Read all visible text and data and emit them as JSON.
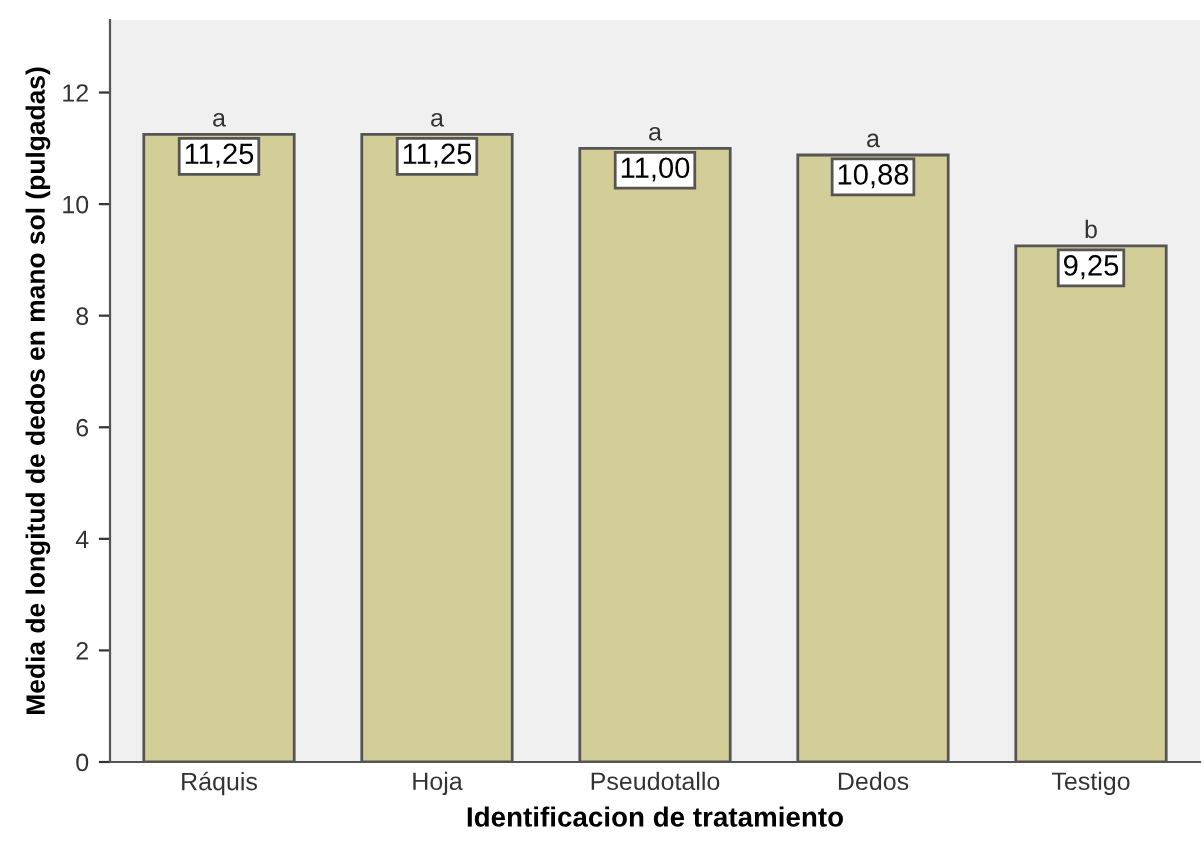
{
  "chart_data": {
    "type": "bar",
    "xlabel": "Identificacion de tratamiento",
    "ylabel": "Media de longitud de dedos en mano sol (pulgadas)",
    "categories": [
      "Ráquis",
      "Hoja",
      "Pseudotallo",
      "Dedos",
      "Testigo"
    ],
    "values": [
      11.25,
      11.25,
      11.0,
      10.88,
      9.25
    ],
    "value_labels": [
      "11,25",
      "11,25",
      "11,00",
      "10,88",
      "9,25"
    ],
    "color": "#d3cd98",
    "ylim": [
      0,
      13.3
    ],
    "yticks": [
      0,
      2,
      4,
      6,
      8,
      10,
      12
    ],
    "grid": false,
    "annotations": [
      {
        "text": "a",
        "x": "Ráquis",
        "y": 11.25
      },
      {
        "text": "a",
        "x": "Hoja",
        "y": 11.25
      },
      {
        "text": "a",
        "x": "Pseudotallo",
        "y": 11.0
      },
      {
        "text": "a",
        "x": "Dedos",
        "y": 10.88
      },
      {
        "text": "b",
        "x": "Testigo",
        "y": 9.25
      }
    ]
  }
}
